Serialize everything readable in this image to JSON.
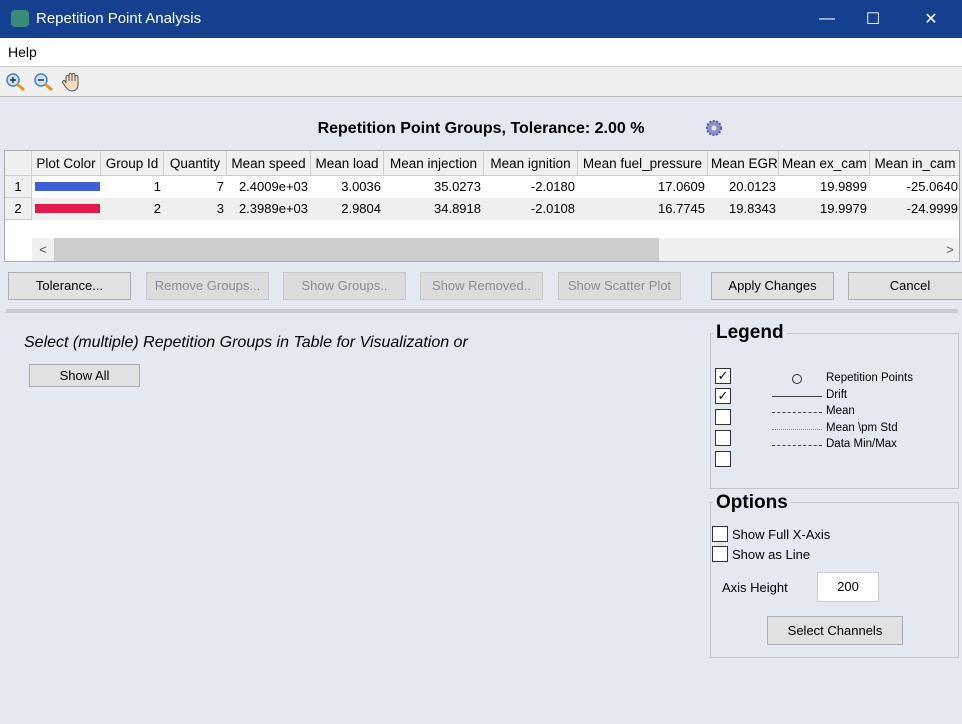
{
  "window": {
    "title": "Repetition Point Analysis",
    "minimize": "—",
    "maximize": "☐",
    "close": "✕"
  },
  "menu": {
    "items": [
      "Help"
    ]
  },
  "toolbar": {
    "icons": [
      "zoom-in-icon",
      "zoom-out-icon",
      "pan-hand-icon"
    ]
  },
  "table_title": "Repetition Point Groups, Tolerance: 2.00 %",
  "table": {
    "columns": [
      "Plot Color",
      "Group Id",
      "Quantity",
      "Mean speed",
      "Mean load",
      "Mean injection",
      "Mean ignition",
      "Mean fuel_pressure",
      "Mean EGR",
      "Mean ex_cam",
      "Mean in_cam"
    ],
    "rows": [
      {
        "index": "1",
        "color": "#3f5fd8",
        "cells": [
          "1",
          "7",
          "2.4009e+03",
          "3.0036",
          "35.0273",
          "-2.0180",
          "17.0609",
          "20.0123",
          "19.9899",
          "-25.0640"
        ]
      },
      {
        "index": "2",
        "color": "#e3194b",
        "cells": [
          "2",
          "3",
          "2.3989e+03",
          "2.9804",
          "34.8918",
          "-2.0108",
          "16.7745",
          "19.8343",
          "19.9979",
          "-24.9999"
        ]
      }
    ]
  },
  "buttons": {
    "tolerance": "Tolerance...",
    "remove_groups": "Remove Groups...",
    "show_groups": "Show Groups..",
    "show_removed": "Show Removed..",
    "show_scatter": "Show Scatter Plot",
    "apply": "Apply Changes",
    "cancel": "Cancel"
  },
  "instruction": "Select (multiple) Repetition Groups in Table for Visualization or",
  "show_all": "Show All",
  "legend": {
    "title": "Legend",
    "items": [
      {
        "label": "Repetition Points",
        "checked": true
      },
      {
        "label": "Drift",
        "checked": true
      },
      {
        "label": "Mean",
        "checked": false
      },
      {
        "label": "Mean \\pm Std",
        "checked": false
      },
      {
        "label": "Data Min/Max",
        "checked": false
      }
    ]
  },
  "options": {
    "title": "Options",
    "show_full_x_axis": "Show Full X-Axis",
    "show_as_line": "Show as Line",
    "axis_height_label": "Axis Height",
    "axis_height_value": "200",
    "select_channels": "Select Channels"
  }
}
